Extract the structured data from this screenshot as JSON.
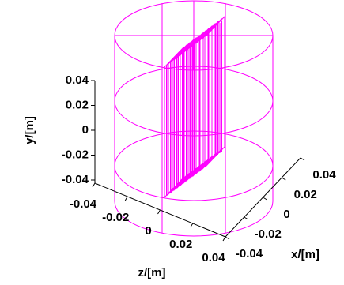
{
  "chart_data": {
    "type": "3d-wireframe",
    "xlabel": "x/[m]",
    "ylabel": "y/[m]",
    "zlabel": "z/[m]",
    "xlim": [
      -0.04,
      0.04
    ],
    "xticks": [
      -0.04,
      -0.02,
      0,
      0.02,
      0.04
    ],
    "ylim": [
      -0.04,
      0.04
    ],
    "yticks": [
      -0.04,
      -0.02,
      0,
      0.02,
      0.04
    ],
    "zlim": [
      -0.04,
      0.04
    ],
    "zticks": [
      -0.04,
      -0.02,
      0,
      0.02,
      0.04
    ],
    "color": "#ff00ff"
  }
}
